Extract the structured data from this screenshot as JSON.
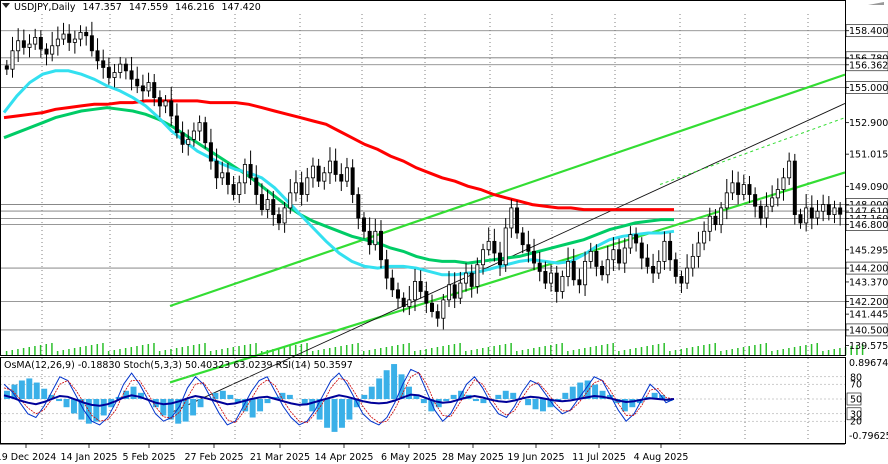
{
  "chart_data": {
    "type": "candlestick",
    "symbol": "USDJPY,Daily",
    "ohlc_header": {
      "open": "147.357",
      "high": "147.559",
      "low": "146.216",
      "close": "147.420"
    },
    "price_axis": {
      "range": [
        139.0,
        159.4
      ],
      "tick_labels": [
        "158.400",
        "156.780",
        "156.362",
        "155.000",
        "152.900",
        "151.015",
        "149.090",
        "148.000",
        "147.610",
        "147.160",
        "146.800",
        "145.295",
        "144.200",
        "143.370",
        "142.200",
        "141.445",
        "140.500",
        "139.575"
      ],
      "boxed_levels": [
        "158.400",
        "156.780",
        "156.362",
        "155.000",
        "148.000",
        "147.610",
        "147.160",
        "146.800",
        "144.200",
        "142.200",
        "140.500"
      ]
    },
    "horizontal_levels": [
      158.4,
      156.78,
      156.362,
      155.0,
      148.0,
      147.61,
      147.16,
      146.8,
      144.2,
      142.2,
      140.5
    ],
    "x_axis_labels": [
      "19 Dec 2024",
      "14 Jan 2025",
      "5 Feb 2025",
      "27 Feb 2025",
      "21 Mar 2025",
      "14 Apr 2025",
      "6 May 2025",
      "28 May 2025",
      "19 Jun 2025",
      "11 Jul 2025",
      "4 Aug 2025"
    ],
    "closes": [
      156.1,
      157.2,
      157.8,
      157.4,
      157.6,
      158.0,
      157.3,
      157.0,
      157.5,
      157.9,
      158.2,
      157.7,
      157.9,
      158.3,
      158.1,
      157.2,
      156.6,
      156.2,
      155.6,
      155.9,
      156.4,
      156.0,
      155.5,
      155.1,
      154.8,
      155.3,
      154.4,
      153.9,
      154.2,
      153.3,
      152.3,
      151.6,
      151.9,
      152.4,
      152.9,
      151.7,
      150.6,
      149.6,
      149.9,
      149.2,
      148.6,
      149.3,
      150.4,
      149.6,
      148.6,
      147.7,
      148.3,
      147.4,
      146.9,
      147.8,
      148.7,
      149.3,
      148.6,
      149.6,
      150.3,
      149.4,
      149.9,
      150.6,
      149.8,
      149.4,
      150.2,
      148.6,
      147.2,
      146.4,
      145.6,
      146.4,
      144.7,
      143.6,
      142.9,
      142.4,
      141.9,
      142.3,
      143.4,
      142.8,
      142.1,
      141.6,
      141.2,
      142.3,
      143.2,
      142.4,
      143.3,
      143.9,
      143.1,
      144.4,
      145.3,
      145.8,
      145.1,
      144.4,
      146.6,
      147.8,
      146.3,
      145.6,
      145.2,
      144.5,
      144.0,
      143.3,
      143.9,
      142.8,
      143.7,
      144.6,
      143.5,
      143.2,
      144.6,
      145.2,
      144.3,
      143.8,
      144.7,
      145.3,
      144.5,
      145.4,
      146.2,
      145.7,
      144.8,
      144.3,
      143.9,
      144.6,
      145.8,
      144.7,
      143.7,
      143.3,
      144.2,
      144.9,
      145.7,
      146.4,
      147.3,
      146.8,
      147.8,
      148.7,
      149.3,
      148.6,
      149.2,
      148.6,
      147.9,
      147.2,
      147.9,
      148.4,
      148.9,
      149.6,
      150.6,
      147.4,
      146.9,
      147.8,
      147.2,
      147.6,
      148.0,
      147.4,
      147.8,
      147.42
    ],
    "moving_averages": [
      {
        "color": "#ff0000",
        "values": [
          153.2,
          153.3,
          153.4,
          153.5,
          153.7,
          153.8,
          153.9,
          154.0,
          154.0,
          154.1,
          154.1,
          154.2,
          154.2,
          154.2,
          154.2,
          154.2,
          154.1,
          154.1,
          154.1,
          154.0,
          153.8,
          153.6,
          153.4,
          153.2,
          153.0,
          152.8,
          152.4,
          152.0,
          151.6,
          151.3,
          150.9,
          150.6,
          150.2,
          149.9,
          149.6,
          149.4,
          149.1,
          148.9,
          148.6,
          148.4,
          148.2,
          148.0,
          147.9,
          147.8,
          147.8,
          147.7,
          147.7,
          147.7,
          147.7,
          147.7,
          147.7,
          147.7,
          147.7
        ]
      },
      {
        "color": "#00cc66",
        "values": [
          152.0,
          152.3,
          152.6,
          152.9,
          153.2,
          153.4,
          153.6,
          153.7,
          153.8,
          153.7,
          153.6,
          153.4,
          153.1,
          152.7,
          152.2,
          151.7,
          151.2,
          150.7,
          150.2,
          149.7,
          149.1,
          148.5,
          147.9,
          147.4,
          147.0,
          146.7,
          146.4,
          146.1,
          145.9,
          145.7,
          145.4,
          145.2,
          144.9,
          144.7,
          144.6,
          144.6,
          144.5,
          144.6,
          144.7,
          144.8,
          144.9,
          145.1,
          145.3,
          145.5,
          145.7,
          145.9,
          146.2,
          146.5,
          146.7,
          146.9,
          147.0,
          147.1,
          147.1
        ]
      },
      {
        "color": "#33e0f0",
        "values": [
          153.5,
          154.5,
          155.3,
          155.8,
          156.0,
          156.0,
          155.8,
          155.5,
          155.1,
          154.8,
          154.4,
          153.9,
          153.2,
          152.4,
          151.8,
          151.2,
          150.8,
          150.4,
          150.1,
          149.9,
          149.6,
          149.0,
          148.2,
          147.4,
          146.6,
          145.8,
          145.1,
          144.6,
          144.3,
          144.2,
          144.3,
          144.3,
          144.2,
          144.0,
          143.8,
          143.8,
          143.9,
          144.0,
          144.2,
          144.4,
          144.6,
          144.7,
          144.6,
          144.5,
          144.6,
          145.0,
          145.5,
          145.9,
          146.1,
          146.2,
          146.3,
          146.3,
          146.4
        ]
      }
    ],
    "trend_channels": [
      {
        "color": "#33dd33",
        "from": [
          "14 Apr 2025",
          140.6
        ],
        "to": [
          "4 Aug 2025",
          146.5
        ]
      },
      {
        "color": "#33dd33",
        "from": [
          "14 Apr 2025",
          145.5
        ],
        "to": [
          "4 Aug 2025",
          152.0
        ]
      },
      {
        "color": "#111111",
        "from": [
          "14 Apr 2025",
          140.3
        ],
        "to": [
          "4 Aug 2025",
          149.0
        ]
      }
    ],
    "volume": [
      1,
      1,
      1,
      1,
      1,
      1,
      1,
      1,
      1,
      1,
      1,
      1,
      1,
      1,
      1,
      1,
      1,
      1,
      1,
      1,
      1,
      1,
      1,
      1,
      1,
      1,
      1,
      1,
      1,
      1,
      1,
      1,
      1,
      1,
      1,
      1,
      1,
      1,
      1,
      1,
      1,
      1,
      1,
      1,
      1,
      1,
      1,
      1,
      1,
      1,
      1,
      1,
      1,
      1,
      1,
      1,
      1,
      1,
      1,
      1,
      1,
      1,
      1,
      1,
      1,
      1,
      1,
      1,
      1,
      1,
      1,
      1,
      1,
      1,
      1,
      1,
      1,
      1,
      1,
      1,
      1,
      1,
      1,
      1,
      1,
      1,
      1,
      1,
      1,
      1,
      1,
      1,
      1,
      1,
      1,
      1,
      1,
      1,
      1,
      1,
      1,
      1,
      1,
      1,
      1,
      1,
      1,
      1,
      1,
      1,
      1,
      1,
      1,
      1,
      1,
      1,
      1,
      1,
      1,
      1,
      1,
      1,
      1,
      1,
      1,
      1,
      1,
      1,
      1,
      1,
      1,
      1,
      1,
      1,
      1,
      1,
      1,
      1,
      1,
      1,
      1,
      1,
      1,
      1,
      1,
      1,
      1,
      1,
      1,
      1,
      1,
      1
    ],
    "oscillator_panel": {
      "header": "OsMA(12,26,9) -0.18830  Stoch(5,3,3) 50.40323 63.0239  RSI(14) 50.3597",
      "osma_axis_labels": [
        "0.89674",
        "-0.79625"
      ],
      "osc_axis_labels": [
        "80",
        "70",
        "50",
        "30",
        "20"
      ],
      "osma_range": [
        -0.9,
        0.9
      ],
      "osma": [
        0.2,
        0.35,
        0.45,
        0.5,
        0.4,
        0.25,
        0.1,
        -0.05,
        -0.2,
        -0.35,
        -0.5,
        -0.6,
        -0.55,
        -0.4,
        -0.2,
        0.05,
        0.2,
        0.3,
        0.15,
        0.0,
        -0.2,
        -0.4,
        -0.5,
        -0.6,
        -0.55,
        -0.4,
        -0.2,
        0.0,
        0.15,
        0.2,
        0.1,
        -0.1,
        -0.3,
        -0.45,
        -0.3,
        -0.1,
        0.05,
        0.15,
        0.1,
        0.0,
        -0.15,
        -0.3,
        -0.5,
        -0.7,
        -0.8,
        -0.7,
        -0.5,
        -0.2,
        0.1,
        0.3,
        0.5,
        0.7,
        0.85,
        0.6,
        0.3,
        0.1,
        -0.1,
        -0.3,
        -0.2,
        -0.05,
        0.1,
        0.2,
        0.1,
        -0.05,
        -0.1,
        0.0,
        0.1,
        0.2,
        0.15,
        0.0,
        -0.15,
        -0.25,
        -0.3,
        -0.2,
        -0.05,
        0.15,
        0.3,
        0.4,
        0.45,
        0.35,
        0.2,
        0.1,
        -0.1,
        -0.3,
        -0.2,
        -0.1,
        0.05,
        0.15,
        0.1,
        -0.05
      ],
      "stoch_main": [
        70,
        60,
        45,
        30,
        25,
        40,
        60,
        80,
        75,
        55,
        35,
        20,
        15,
        25,
        45,
        70,
        85,
        70,
        50,
        30,
        20,
        25,
        40,
        65,
        80,
        70,
        50,
        30,
        15,
        20,
        40,
        60,
        75,
        80,
        60,
        40,
        25,
        15,
        20,
        35,
        55,
        75,
        85,
        70,
        50,
        30,
        20,
        15,
        25,
        45,
        70,
        90,
        85,
        60,
        35,
        20,
        30,
        50,
        70,
        80,
        65,
        45,
        30,
        25,
        40,
        60,
        75,
        70,
        55,
        40,
        30,
        35,
        50,
        65,
        80,
        75,
        55,
        35,
        20,
        30,
        50,
        70,
        60,
        45,
        50
      ],
      "stoch_signal": [
        65,
        62,
        50,
        38,
        30,
        35,
        50,
        70,
        75,
        62,
        45,
        28,
        20,
        22,
        35,
        58,
        75,
        75,
        58,
        40,
        26,
        24,
        32,
        52,
        70,
        72,
        58,
        40,
        22,
        18,
        32,
        50,
        68,
        76,
        68,
        48,
        32,
        20,
        18,
        30,
        45,
        65,
        78,
        75,
        58,
        40,
        26,
        18,
        20,
        36,
        58,
        80,
        86,
        70,
        45,
        28,
        26,
        42,
        60,
        76,
        70,
        52,
        36,
        28,
        34,
        52,
        68,
        72,
        60,
        46,
        34,
        34,
        44,
        58,
        72,
        76,
        62,
        44,
        28,
        28,
        42,
        62,
        64,
        52,
        50
      ],
      "rsi": [
        55,
        52,
        48,
        45,
        43,
        46,
        50,
        54,
        53,
        49,
        45,
        42,
        41,
        43,
        47,
        52,
        55,
        53,
        49,
        45,
        43,
        44,
        47,
        51,
        54,
        52,
        49,
        46,
        43,
        44,
        47,
        50,
        52,
        53,
        50,
        47,
        44,
        42,
        43,
        46,
        49,
        52,
        55,
        53,
        50,
        47,
        45,
        44,
        45,
        48,
        52,
        56,
        55,
        51,
        47,
        45,
        46,
        49,
        52,
        54,
        52,
        49,
        47,
        46,
        48,
        51,
        53,
        52,
        50,
        48,
        47,
        48,
        50,
        52,
        54,
        53,
        51,
        48,
        46,
        47,
        49,
        51,
        50,
        49,
        50
      ]
    }
  }
}
